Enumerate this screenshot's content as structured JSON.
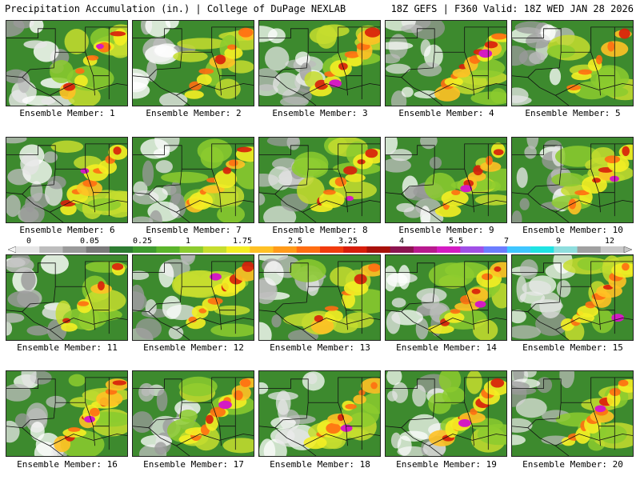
{
  "header": {
    "left": "Precipitation Accumulation (in.) | College of DuPage NEXLAB",
    "right": "18Z GEFS | F360 Valid: 18Z WED JAN 28 2026"
  },
  "colorbar": {
    "tick_labels": [
      "0",
      "0.05",
      "0.25",
      "1",
      "1.75",
      "2.5",
      "3.25",
      "4",
      "5.5",
      "7",
      "9",
      "12"
    ],
    "colors": [
      "#e6e6e6",
      "#bdbdbd",
      "#9a9a9a",
      "#7a7a7a",
      "#2e7d32",
      "#3f9b2f",
      "#5bb52c",
      "#8ccb2e",
      "#c5dd2e",
      "#f4ee23",
      "#ffc125",
      "#ff9b1a",
      "#ff6e12",
      "#f13b0d",
      "#d71d0b",
      "#a8110a",
      "#8c1450",
      "#b81a8e",
      "#d41bc3",
      "#a050e6",
      "#6b7dff",
      "#3fc6ff",
      "#1fe3e3",
      "#8fdede",
      "#a0a0a0",
      "#c8c8c8"
    ]
  },
  "members": [
    {
      "label": "Ensemble Member: 1",
      "wet": 0.45,
      "hot": 0.35,
      "core": 0.2
    },
    {
      "label": "Ensemble Member: 2",
      "wet": 0.5,
      "hot": 0.4,
      "core": 0.05
    },
    {
      "label": "Ensemble Member: 3",
      "wet": 0.65,
      "hot": 0.55,
      "core": 0.5
    },
    {
      "label": "Ensemble Member: 4",
      "wet": 0.7,
      "hot": 0.6,
      "core": 0.55
    },
    {
      "label": "Ensemble Member: 5",
      "wet": 0.6,
      "hot": 0.4,
      "core": 0.1
    },
    {
      "label": "Ensemble Member: 6",
      "wet": 0.55,
      "hot": 0.5,
      "core": 0.25
    },
    {
      "label": "Ensemble Member: 7",
      "wet": 0.6,
      "hot": 0.45,
      "core": 0.15
    },
    {
      "label": "Ensemble Member: 8",
      "wet": 0.65,
      "hot": 0.5,
      "core": 0.2
    },
    {
      "label": "Ensemble Member: 9",
      "wet": 0.6,
      "hot": 0.55,
      "core": 0.45
    },
    {
      "label": "Ensemble Member: 10",
      "wet": 0.55,
      "hot": 0.45,
      "core": 0.3
    },
    {
      "label": "Ensemble Member: 11",
      "wet": 0.45,
      "hot": 0.2,
      "core": 0.0
    },
    {
      "label": "Ensemble Member: 12",
      "wet": 0.6,
      "hot": 0.5,
      "core": 0.45
    },
    {
      "label": "Ensemble Member: 13",
      "wet": 0.55,
      "hot": 0.4,
      "core": 0.05
    },
    {
      "label": "Ensemble Member: 14",
      "wet": 0.6,
      "hot": 0.5,
      "core": 0.4
    },
    {
      "label": "Ensemble Member: 15",
      "wet": 0.7,
      "hot": 0.65,
      "core": 0.5
    },
    {
      "label": "Ensemble Member: 16",
      "wet": 0.6,
      "hot": 0.6,
      "core": 0.4
    },
    {
      "label": "Ensemble Member: 17",
      "wet": 0.6,
      "hot": 0.6,
      "core": 0.55
    },
    {
      "label": "Ensemble Member: 18",
      "wet": 0.65,
      "hot": 0.55,
      "core": 0.45
    },
    {
      "label": "Ensemble Member: 19",
      "wet": 0.7,
      "hot": 0.6,
      "core": 0.5
    },
    {
      "label": "Ensemble Member: 20",
      "wet": 0.7,
      "hot": 0.6,
      "core": 0.4
    }
  ]
}
